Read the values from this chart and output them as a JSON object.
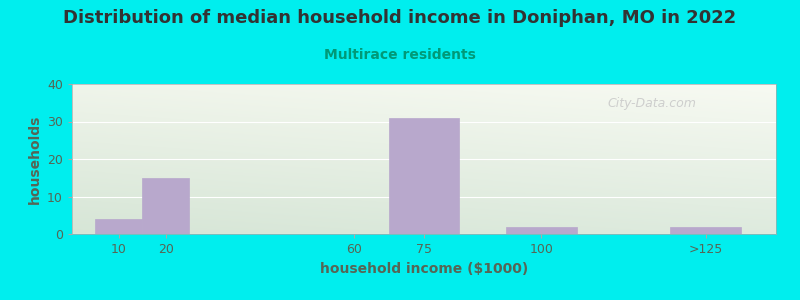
{
  "title": "Distribution of median household income in Doniphan, MO in 2022",
  "subtitle": "Multirace residents",
  "xlabel": "household income ($1000)",
  "ylabel": "households",
  "bar_labels": [
    "10",
    "20",
    "60",
    "75",
    "100",
    ">125"
  ],
  "bar_positions": [
    10,
    20,
    60,
    75,
    100,
    135
  ],
  "bar_widths": [
    10,
    10,
    10,
    15,
    15,
    15
  ],
  "bar_heights": [
    4,
    15,
    0,
    31,
    2,
    2
  ],
  "bar_color": "#b8a8cc",
  "bar_edgecolor": "#b8a8cc",
  "yticks": [
    0,
    10,
    20,
    30,
    40
  ],
  "ylim": [
    0,
    40
  ],
  "xlim": [
    0,
    150
  ],
  "bg_color": "#00eeee",
  "plot_bg_topleft": "#eaf2e8",
  "plot_bg_topright": "#f5f8f3",
  "plot_bg_bottomleft": "#deecd8",
  "plot_bg_bottomright": "#eef5ec",
  "title_color": "#333333",
  "subtitle_color": "#009977",
  "axis_label_color": "#556655",
  "tick_label_color": "#556655",
  "watermark": "City-Data.com",
  "watermark_color": "#c8c8c8",
  "grid_color": "#ffffff",
  "title_fontsize": 13,
  "subtitle_fontsize": 10,
  "axis_label_fontsize": 10,
  "tick_fontsize": 9
}
